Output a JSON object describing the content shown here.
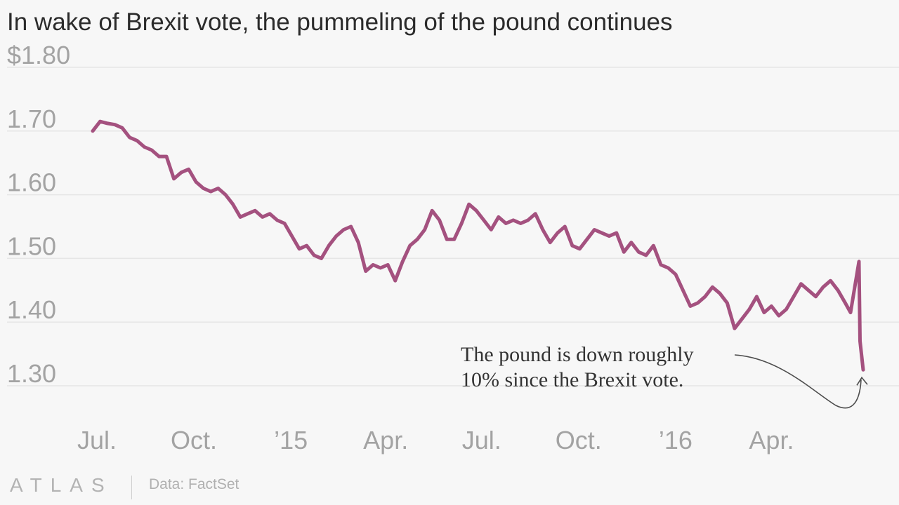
{
  "chart_data": {
    "type": "line",
    "title": "In wake of Brexit vote, the pummeling of the pound continues",
    "xlabel": "",
    "ylabel": "",
    "ylim": [
      1.3,
      1.8
    ],
    "yticks": [
      {
        "value": 1.8,
        "label": "$1.80"
      },
      {
        "value": 1.7,
        "label": "1.70"
      },
      {
        "value": 1.6,
        "label": "1.60"
      },
      {
        "value": 1.5,
        "label": "1.50"
      },
      {
        "value": 1.4,
        "label": "1.40"
      },
      {
        "value": 1.3,
        "label": "1.30"
      }
    ],
    "xticks": [
      {
        "date": "2014-07-01",
        "label": "Jul."
      },
      {
        "date": "2014-10-01",
        "label": "Oct."
      },
      {
        "date": "2015-01-01",
        "label": "’15"
      },
      {
        "date": "2015-04-01",
        "label": "Apr."
      },
      {
        "date": "2015-07-01",
        "label": "Jul."
      },
      {
        "date": "2015-10-01",
        "label": "Oct."
      },
      {
        "date": "2016-01-01",
        "label": "’16"
      },
      {
        "date": "2016-04-01",
        "label": "Apr."
      }
    ],
    "grid": true,
    "series": [
      {
        "color": "#a4517f",
        "points": [
          [
            "2014-06-27",
            1.7
          ],
          [
            "2014-07-04",
            1.715
          ],
          [
            "2014-07-11",
            1.712
          ],
          [
            "2014-07-18",
            1.71
          ],
          [
            "2014-07-25",
            1.705
          ],
          [
            "2014-08-01",
            1.69
          ],
          [
            "2014-08-08",
            1.685
          ],
          [
            "2014-08-15",
            1.675
          ],
          [
            "2014-08-22",
            1.67
          ],
          [
            "2014-08-29",
            1.66
          ],
          [
            "2014-09-05",
            1.66
          ],
          [
            "2014-09-12",
            1.625
          ],
          [
            "2014-09-19",
            1.635
          ],
          [
            "2014-09-26",
            1.64
          ],
          [
            "2014-10-03",
            1.62
          ],
          [
            "2014-10-10",
            1.61
          ],
          [
            "2014-10-17",
            1.605
          ],
          [
            "2014-10-24",
            1.61
          ],
          [
            "2014-10-31",
            1.6
          ],
          [
            "2014-11-07",
            1.585
          ],
          [
            "2014-11-14",
            1.565
          ],
          [
            "2014-11-21",
            1.57
          ],
          [
            "2014-11-28",
            1.575
          ],
          [
            "2014-12-05",
            1.565
          ],
          [
            "2014-12-12",
            1.57
          ],
          [
            "2014-12-19",
            1.56
          ],
          [
            "2014-12-26",
            1.555
          ],
          [
            "2015-01-02",
            1.535
          ],
          [
            "2015-01-09",
            1.515
          ],
          [
            "2015-01-16",
            1.52
          ],
          [
            "2015-01-23",
            1.505
          ],
          [
            "2015-01-30",
            1.5
          ],
          [
            "2015-02-06",
            1.52
          ],
          [
            "2015-02-13",
            1.535
          ],
          [
            "2015-02-20",
            1.545
          ],
          [
            "2015-02-27",
            1.55
          ],
          [
            "2015-03-06",
            1.525
          ],
          [
            "2015-03-13",
            1.48
          ],
          [
            "2015-03-20",
            1.49
          ],
          [
            "2015-03-27",
            1.485
          ],
          [
            "2015-04-03",
            1.49
          ],
          [
            "2015-04-10",
            1.465
          ],
          [
            "2015-04-17",
            1.495
          ],
          [
            "2015-04-24",
            1.52
          ],
          [
            "2015-05-01",
            1.53
          ],
          [
            "2015-05-08",
            1.545
          ],
          [
            "2015-05-15",
            1.575
          ],
          [
            "2015-05-22",
            1.56
          ],
          [
            "2015-05-29",
            1.53
          ],
          [
            "2015-06-05",
            1.53
          ],
          [
            "2015-06-12",
            1.555
          ],
          [
            "2015-06-19",
            1.585
          ],
          [
            "2015-06-26",
            1.575
          ],
          [
            "2015-07-03",
            1.56
          ],
          [
            "2015-07-10",
            1.545
          ],
          [
            "2015-07-17",
            1.565
          ],
          [
            "2015-07-24",
            1.555
          ],
          [
            "2015-07-31",
            1.56
          ],
          [
            "2015-08-07",
            1.555
          ],
          [
            "2015-08-14",
            1.56
          ],
          [
            "2015-08-21",
            1.57
          ],
          [
            "2015-08-28",
            1.545
          ],
          [
            "2015-09-04",
            1.525
          ],
          [
            "2015-09-11",
            1.54
          ],
          [
            "2015-09-18",
            1.55
          ],
          [
            "2015-09-25",
            1.52
          ],
          [
            "2015-10-02",
            1.515
          ],
          [
            "2015-10-09",
            1.53
          ],
          [
            "2015-10-16",
            1.545
          ],
          [
            "2015-10-23",
            1.54
          ],
          [
            "2015-10-30",
            1.535
          ],
          [
            "2015-11-06",
            1.54
          ],
          [
            "2015-11-13",
            1.51
          ],
          [
            "2015-11-20",
            1.525
          ],
          [
            "2015-11-27",
            1.51
          ],
          [
            "2015-12-04",
            1.505
          ],
          [
            "2015-12-11",
            1.52
          ],
          [
            "2015-12-18",
            1.49
          ],
          [
            "2015-12-25",
            1.485
          ],
          [
            "2016-01-01",
            1.475
          ],
          [
            "2016-01-08",
            1.45
          ],
          [
            "2016-01-15",
            1.425
          ],
          [
            "2016-01-22",
            1.43
          ],
          [
            "2016-01-29",
            1.44
          ],
          [
            "2016-02-05",
            1.455
          ],
          [
            "2016-02-12",
            1.445
          ],
          [
            "2016-02-19",
            1.43
          ],
          [
            "2016-02-26",
            1.39
          ],
          [
            "2016-03-04",
            1.405
          ],
          [
            "2016-03-11",
            1.42
          ],
          [
            "2016-03-18",
            1.44
          ],
          [
            "2016-03-25",
            1.415
          ],
          [
            "2016-04-01",
            1.425
          ],
          [
            "2016-04-08",
            1.41
          ],
          [
            "2016-04-15",
            1.42
          ],
          [
            "2016-04-22",
            1.44
          ],
          [
            "2016-04-29",
            1.46
          ],
          [
            "2016-05-06",
            1.45
          ],
          [
            "2016-05-13",
            1.44
          ],
          [
            "2016-05-20",
            1.455
          ],
          [
            "2016-05-27",
            1.465
          ],
          [
            "2016-06-03",
            1.45
          ],
          [
            "2016-06-10",
            1.43
          ],
          [
            "2016-06-15",
            1.415
          ],
          [
            "2016-06-20",
            1.465
          ],
          [
            "2016-06-23",
            1.495
          ],
          [
            "2016-06-24",
            1.37
          ],
          [
            "2016-06-27",
            1.325
          ]
        ]
      }
    ],
    "annotation": {
      "line1": "The pound is down roughly",
      "line2": "10% since the Brexit vote."
    },
    "source": "Data: FactSet",
    "brand": "ATLAS"
  }
}
